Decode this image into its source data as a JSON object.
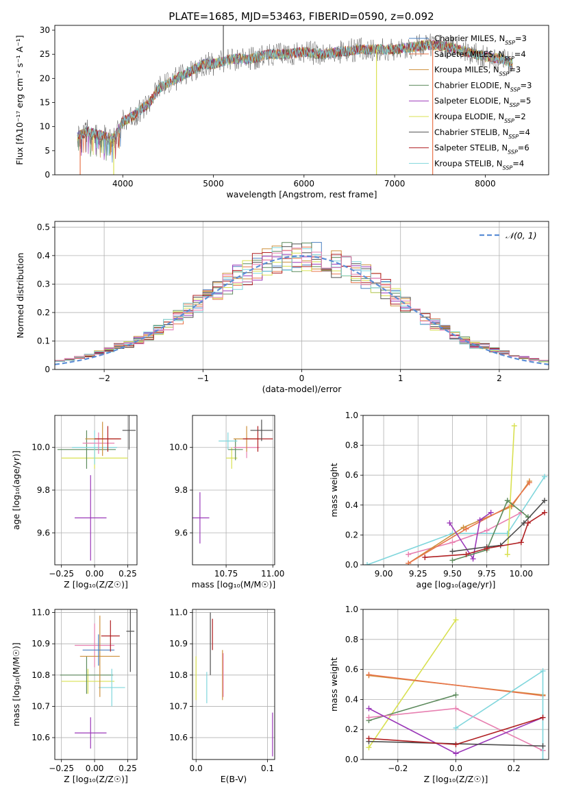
{
  "figure": {
    "title": "PLATE=1685, MJD=53463, FIBERID=0590, z=0.092"
  },
  "colors": {
    "Chabrier MILES": "#4a7fc1",
    "Salpeter MILES": "#e8744a",
    "Kroupa MILES": "#cd8f3a",
    "Chabrier ELODIE": "#5c8a5c",
    "Salpeter ELODIE": "#9a37b8",
    "Kroupa ELODIE": "#d8e050",
    "Chabrier STELIB": "#4d4d4d",
    "Salpeter STELIB": "#b01f22",
    "Kroupa STELIB": "#7fd6dc",
    "extra_pink": "#e77fb0",
    "normal_curve": "#5b8ed6"
  },
  "chart_data": [
    {
      "id": "spectrum",
      "type": "line",
      "xlabel": "wavelength [Angstrom, rest frame]",
      "ylabel": "Flux [fλ10⁻¹⁷ erg cm⁻² s⁻¹ A⁻¹]",
      "xlim": [
        3250,
        8700
      ],
      "ylim": [
        0,
        31
      ],
      "xticks": [
        4000,
        5000,
        6000,
        7000,
        8000
      ],
      "yticks": [
        0,
        5,
        10,
        15,
        20,
        25,
        30
      ],
      "legend_position": "upper-right",
      "grid": false,
      "spectrum_envelope": {
        "x": [
          3500,
          3600,
          3700,
          3800,
          3900,
          4000,
          4100,
          4200,
          4300,
          4400,
          4500,
          4600,
          4700,
          4800,
          4900,
          5000,
          5200,
          5400,
          5600,
          5800,
          6000,
          6200,
          6400,
          6600,
          6800,
          7000,
          7200,
          7400,
          7600,
          7800,
          8000,
          8200,
          8300
        ],
        "y": [
          8,
          9,
          8.5,
          8,
          7.5,
          11,
          12,
          13.5,
          15,
          18,
          19,
          20,
          21,
          22,
          23,
          23,
          24,
          24,
          25,
          25,
          25.5,
          25,
          25.5,
          26,
          26,
          26,
          26.5,
          27,
          26.5,
          25.5,
          24.5,
          24,
          23
        ]
      },
      "series": [
        {
          "name": "Chabrier MILES, N$_{SSP}$=3",
          "label_main": "Chabrier MILES, N",
          "label_sub": "SSP",
          "label_tail": "=3"
        },
        {
          "name": "Salpeter MILES, N$_{SSP}$=4",
          "label_main": "Salpeter MILES, N",
          "label_sub": "SSP",
          "label_tail": "=4"
        },
        {
          "name": "Kroupa MILES, N$_{SSP}$=3",
          "label_main": "Kroupa MILES, N",
          "label_sub": "SSP",
          "label_tail": "=3"
        },
        {
          "name": "Chabrier ELODIE, N$_{SSP}$=3",
          "label_main": "Chabrier ELODIE, N",
          "label_sub": "SSP",
          "label_tail": "=3"
        },
        {
          "name": "Salpeter ELODIE, N$_{SSP}$=5",
          "label_main": "Salpeter ELODIE, N",
          "label_sub": "SSP",
          "label_tail": "=5"
        },
        {
          "name": "Kroupa ELODIE, N$_{SSP}$=2",
          "label_main": "Kroupa ELODIE, N",
          "label_sub": "SSP",
          "label_tail": "=2"
        },
        {
          "name": "Chabrier STELIB, N$_{SSP}$=4",
          "label_main": "Chabrier STELIB, N",
          "label_sub": "SSP",
          "label_tail": "=4"
        },
        {
          "name": "Salpeter STELIB, N$_{SSP}$=6",
          "label_main": "Salpeter STELIB, N",
          "label_sub": "SSP",
          "label_tail": "=6"
        },
        {
          "name": "Kroupa STELIB, N$_{SSP}$=4",
          "label_main": "Kroupa STELIB, N",
          "label_sub": "SSP",
          "label_tail": "=4"
        }
      ]
    },
    {
      "id": "residuals",
      "type": "histogram",
      "xlabel": "(data-model)/error",
      "ylabel": "Normed distribution",
      "xlim": [
        -2.5,
        2.5
      ],
      "ylim": [
        0,
        0.52
      ],
      "xticks": [
        -2,
        -1,
        0,
        1,
        2
      ],
      "xticklabels": [
        "−2",
        "−1",
        "0",
        "1",
        "2"
      ],
      "yticks": [
        0.0,
        0.1,
        0.2,
        0.3,
        0.4,
        0.5
      ],
      "grid": true,
      "legend_position": "upper-right",
      "legend_label": "𝒩(0, 1)",
      "bin_width": 0.1,
      "normal": {
        "mean": 0,
        "sigma": 1
      }
    },
    {
      "id": "age_vs_Z",
      "type": "errorbar",
      "xlabel": "Z [log₁₀(Z/Z☉)]",
      "ylabel": "age  [log₁₀(age/yr)]",
      "xlim": [
        -0.3,
        0.32
      ],
      "ylim": [
        9.45,
        10.15
      ],
      "xticks": [
        -0.25,
        0.0,
        0.25
      ],
      "xticklabels": [
        "−0.25",
        "0.00",
        "0.25"
      ],
      "yticks": [
        9.6,
        9.8,
        10.0
      ],
      "yticklabels": [
        "9.6",
        "9.8",
        "10.0"
      ],
      "grid": true,
      "points": [
        {
          "model": "Salpeter ELODIE",
          "x": -0.03,
          "xerr": 0.12,
          "y": 9.67,
          "yerr": 0.2
        },
        {
          "model": "Kroupa ELODIE",
          "x": 0.0,
          "xerr": 0.25,
          "y": 9.95,
          "yerr": 0.05
        },
        {
          "model": "Chabrier ELODIE",
          "x": -0.06,
          "xerr": 0.22,
          "y": 9.99,
          "yerr": 0.09
        },
        {
          "model": "Kroupa STELIB",
          "x": 0.0,
          "xerr": 0.17,
          "y": 10.0,
          "yerr": 0.08
        },
        {
          "model": "extra_pink",
          "x": 0.03,
          "xerr": 0.12,
          "y": 10.02,
          "yerr": 0.05
        },
        {
          "model": "Kroupa MILES",
          "x": 0.06,
          "xerr": 0.13,
          "y": 10.04,
          "yerr": 0.08
        },
        {
          "model": "Salpeter STELIB",
          "x": 0.1,
          "xerr": 0.1,
          "y": 10.04,
          "yerr": 0.06
        },
        {
          "model": "Chabrier STELIB",
          "x": 0.26,
          "xerr": 0.05,
          "y": 10.08,
          "yerr": 0.09
        }
      ]
    },
    {
      "id": "age_vs_mass",
      "type": "errorbar",
      "xlabel": "mass [log₁₀(M/M☉)]",
      "ylabel": "",
      "xlim": [
        10.57,
        11.01
      ],
      "ylim": [
        9.45,
        10.15
      ],
      "xticks": [
        10.75,
        11.0
      ],
      "xticklabels": [
        "10.75",
        "11.00"
      ],
      "yticks": [
        9.6,
        9.8,
        10.0
      ],
      "yticklabels": [
        "9.6",
        "9.8",
        "10.0"
      ],
      "grid": true,
      "points": [
        {
          "model": "Salpeter ELODIE",
          "x": 10.61,
          "xerr": 0.05,
          "y": 9.67,
          "yerr": 0.12
        },
        {
          "model": "Kroupa ELODIE",
          "x": 10.78,
          "xerr": 0.03,
          "y": 9.95,
          "yerr": 0.05
        },
        {
          "model": "Chabrier ELODIE",
          "x": 10.8,
          "xerr": 0.04,
          "y": 9.99,
          "yerr": 0.05
        },
        {
          "model": "Kroupa STELIB",
          "x": 10.76,
          "xerr": 0.05,
          "y": 10.03,
          "yerr": 0.04
        },
        {
          "model": "extra_pink",
          "x": 10.86,
          "xerr": 0.07,
          "y": 10.0,
          "yerr": 0.05
        },
        {
          "model": "Kroupa MILES",
          "x": 10.86,
          "xerr": 0.07,
          "y": 10.04,
          "yerr": 0.06
        },
        {
          "model": "Salpeter STELIB",
          "x": 10.92,
          "xerr": 0.08,
          "y": 10.04,
          "yerr": 0.06
        },
        {
          "model": "Chabrier STELIB",
          "x": 10.94,
          "xerr": 0.06,
          "y": 10.08,
          "yerr": 0.05
        }
      ]
    },
    {
      "id": "weight_vs_age",
      "type": "line",
      "xlabel": "age  [log₁₀(age/yr)]",
      "ylabel": "mass weight",
      "xlim": [
        8.85,
        10.2
      ],
      "ylim": [
        0,
        1.0
      ],
      "xticks": [
        9.0,
        9.25,
        9.5,
        9.75,
        10.0
      ],
      "xticklabels": [
        "9.00",
        "9.25",
        "9.50",
        "9.75",
        "10.00"
      ],
      "yticks": [
        0.0,
        0.2,
        0.4,
        0.6,
        0.8,
        1.0
      ],
      "yticklabels": [
        "0.0",
        "0.2",
        "0.4",
        "0.6",
        "0.8",
        "1.0"
      ],
      "grid": true,
      "series": [
        {
          "model": "Kroupa STELIB",
          "x": [
            8.88,
            9.5,
            9.9,
            10.17
          ],
          "y": [
            0.0,
            0.21,
            0.21,
            0.59
          ]
        },
        {
          "model": "extra_pink",
          "x": [
            9.18,
            9.5,
            9.75,
            10.0
          ],
          "y": [
            0.07,
            0.15,
            0.23,
            0.35
          ]
        },
        {
          "model": "Kroupa MILES",
          "x": [
            9.18,
            9.58,
            9.93,
            10.06
          ],
          "y": [
            0.01,
            0.25,
            0.39,
            0.56
          ]
        },
        {
          "model": "Salpeter MILES",
          "x": [
            9.18,
            9.6,
            9.93,
            10.06
          ],
          "y": [
            0.01,
            0.24,
            0.4,
            0.55
          ]
        },
        {
          "model": "Salpeter ELODIE",
          "x": [
            9.48,
            9.65,
            9.7,
            9.78
          ],
          "y": [
            0.28,
            0.04,
            0.3,
            0.35
          ]
        },
        {
          "model": "Kroupa ELODIE",
          "x": [
            9.9,
            9.95
          ],
          "y": [
            0.07,
            0.93
          ]
        },
        {
          "model": "Chabrier ELODIE",
          "x": [
            9.5,
            9.75,
            9.9,
            10.05
          ],
          "y": [
            0.03,
            0.1,
            0.43,
            0.32
          ]
        },
        {
          "model": "Chabrier STELIB",
          "x": [
            9.5,
            9.75,
            9.85,
            10.02,
            10.17
          ],
          "y": [
            0.09,
            0.12,
            0.13,
            0.28,
            0.43
          ]
        },
        {
          "model": "Salpeter STELIB",
          "x": [
            9.3,
            9.6,
            9.75,
            10.0,
            10.05,
            10.17
          ],
          "y": [
            0.05,
            0.07,
            0.11,
            0.15,
            0.28,
            0.35
          ]
        }
      ]
    },
    {
      "id": "mass_vs_Z",
      "type": "errorbar",
      "xlabel": "Z [log₁₀(Z/Z☉)]",
      "ylabel": "mass [log₁₀(M/M☉)]",
      "xlim": [
        -0.3,
        0.32
      ],
      "ylim": [
        10.53,
        11.01
      ],
      "xticks": [
        -0.25,
        0.0,
        0.25
      ],
      "xticklabels": [
        "−0.25",
        "0.00",
        "0.25"
      ],
      "yticks": [
        10.6,
        10.7,
        10.8,
        10.9,
        11.0
      ],
      "yticklabels": [
        "10.6",
        "10.7",
        "10.8",
        "10.9",
        "11.0"
      ],
      "grid": true,
      "points": [
        {
          "model": "Salpeter ELODIE",
          "x": -0.03,
          "xerr": 0.12,
          "y": 10.615,
          "yerr": 0.05
        },
        {
          "model": "Kroupa ELODIE",
          "x": -0.05,
          "xerr": 0.2,
          "y": 10.78,
          "yerr": 0.04
        },
        {
          "model": "Chabrier ELODIE",
          "x": -0.06,
          "xerr": 0.2,
          "y": 10.8,
          "yerr": 0.06
        },
        {
          "model": "Kroupa STELIB",
          "x": 0.13,
          "xerr": 0.1,
          "y": 10.76,
          "yerr": 0.06
        },
        {
          "model": "extra_pink",
          "x": 0.0,
          "xerr": 0.15,
          "y": 10.895,
          "yerr": 0.07
        },
        {
          "model": "Kroupa MILES",
          "x": 0.04,
          "xerr": 0.15,
          "y": 10.86,
          "yerr": 0.13
        },
        {
          "model": "Chabrier MILES",
          "x": 0.03,
          "xerr": 0.12,
          "y": 10.88,
          "yerr": 0.05
        },
        {
          "model": "Salpeter STELIB",
          "x": 0.12,
          "xerr": 0.07,
          "y": 10.925,
          "yerr": 0.05
        },
        {
          "model": "Chabrier STELIB",
          "x": 0.27,
          "xerr": 0.03,
          "y": 10.94,
          "yerr": 0.13
        }
      ]
    },
    {
      "id": "mass_vs_EBV",
      "type": "errorbar",
      "xlabel": "E(B-V)",
      "ylabel": "",
      "xlim": [
        -0.005,
        0.11
      ],
      "ylim": [
        10.53,
        11.01
      ],
      "xticks": [
        0.0,
        0.1
      ],
      "xticklabels": [
        "0.0",
        "0.1"
      ],
      "yticks": [
        10.6,
        10.7,
        10.8,
        10.9,
        11.0
      ],
      "yticklabels": [
        "10.6",
        "10.7",
        "10.8",
        "10.9",
        "11.0"
      ],
      "grid": true,
      "points": [
        {
          "model": "Salpeter ELODIE",
          "x": 0.107,
          "xerr": 0.0,
          "y": 10.61,
          "yerr": 0.07
        },
        {
          "model": "Kroupa ELODIE",
          "x": 0.0,
          "xerr": 0.0,
          "y": 10.79,
          "yerr": 0.07
        },
        {
          "model": "Kroupa STELIB",
          "x": 0.015,
          "xerr": 0.0,
          "y": 10.76,
          "yerr": 0.05
        },
        {
          "model": "Chabrier STELIB",
          "x": 0.02,
          "xerr": 0.0,
          "y": 10.9,
          "yerr": 0.1
        },
        {
          "model": "Salpeter STELIB",
          "x": 0.023,
          "xerr": 0.0,
          "y": 10.93,
          "yerr": 0.05
        },
        {
          "model": "Kroupa MILES",
          "x": 0.037,
          "xerr": 0.0,
          "y": 10.8,
          "yerr": 0.08
        },
        {
          "model": "extra_pink",
          "x": 0.038,
          "xerr": 0.0,
          "y": 10.8,
          "yerr": 0.07
        }
      ]
    },
    {
      "id": "weight_vs_Z",
      "type": "line",
      "xlabel": "Z [log₁₀(Z/Z☉)]",
      "ylabel": "mass weight",
      "xlim": [
        -0.32,
        0.32
      ],
      "ylim": [
        0,
        1.0
      ],
      "xticks": [
        -0.2,
        0.0,
        0.2
      ],
      "xticklabels": [
        "−0.2",
        "0.0",
        "0.2"
      ],
      "yticks": [
        0.0,
        0.2,
        0.4,
        0.6,
        0.8,
        1.0
      ],
      "yticklabels": [
        "0.0",
        "0.2",
        "0.4",
        "0.6",
        "0.8",
        "1.0"
      ],
      "grid": true,
      "series": [
        {
          "model": "Kroupa ELODIE",
          "x": [
            -0.3,
            0.0
          ],
          "y": [
            0.08,
            0.93
          ]
        },
        {
          "model": "Kroupa MILES",
          "x": [
            -0.3,
            0.3
          ],
          "y": [
            0.56,
            0.43
          ]
        },
        {
          "model": "Salpeter MILES",
          "x": [
            -0.3,
            0.3
          ],
          "y": [
            0.565,
            0.425
          ]
        },
        {
          "model": "Chabrier ELODIE",
          "x": [
            -0.3,
            0.0
          ],
          "y": [
            0.26,
            0.43
          ]
        },
        {
          "model": "extra_pink",
          "x": [
            -0.3,
            0.0,
            0.3
          ],
          "y": [
            0.28,
            0.34,
            0.06
          ]
        },
        {
          "model": "Salpeter ELODIE",
          "x": [
            -0.3,
            0.0,
            0.3
          ],
          "y": [
            0.34,
            0.04,
            0.28
          ]
        },
        {
          "model": "Kroupa STELIB",
          "x": [
            0.0,
            0.3,
            0.3
          ],
          "y": [
            0.21,
            0.59,
            0.0
          ]
        },
        {
          "model": "Chabrier STELIB",
          "x": [
            -0.3,
            0.3
          ],
          "y": [
            0.12,
            0.09
          ]
        },
        {
          "model": "Salpeter STELIB",
          "x": [
            -0.3,
            0.0,
            0.3
          ],
          "y": [
            0.14,
            0.1,
            0.28
          ]
        }
      ]
    }
  ]
}
